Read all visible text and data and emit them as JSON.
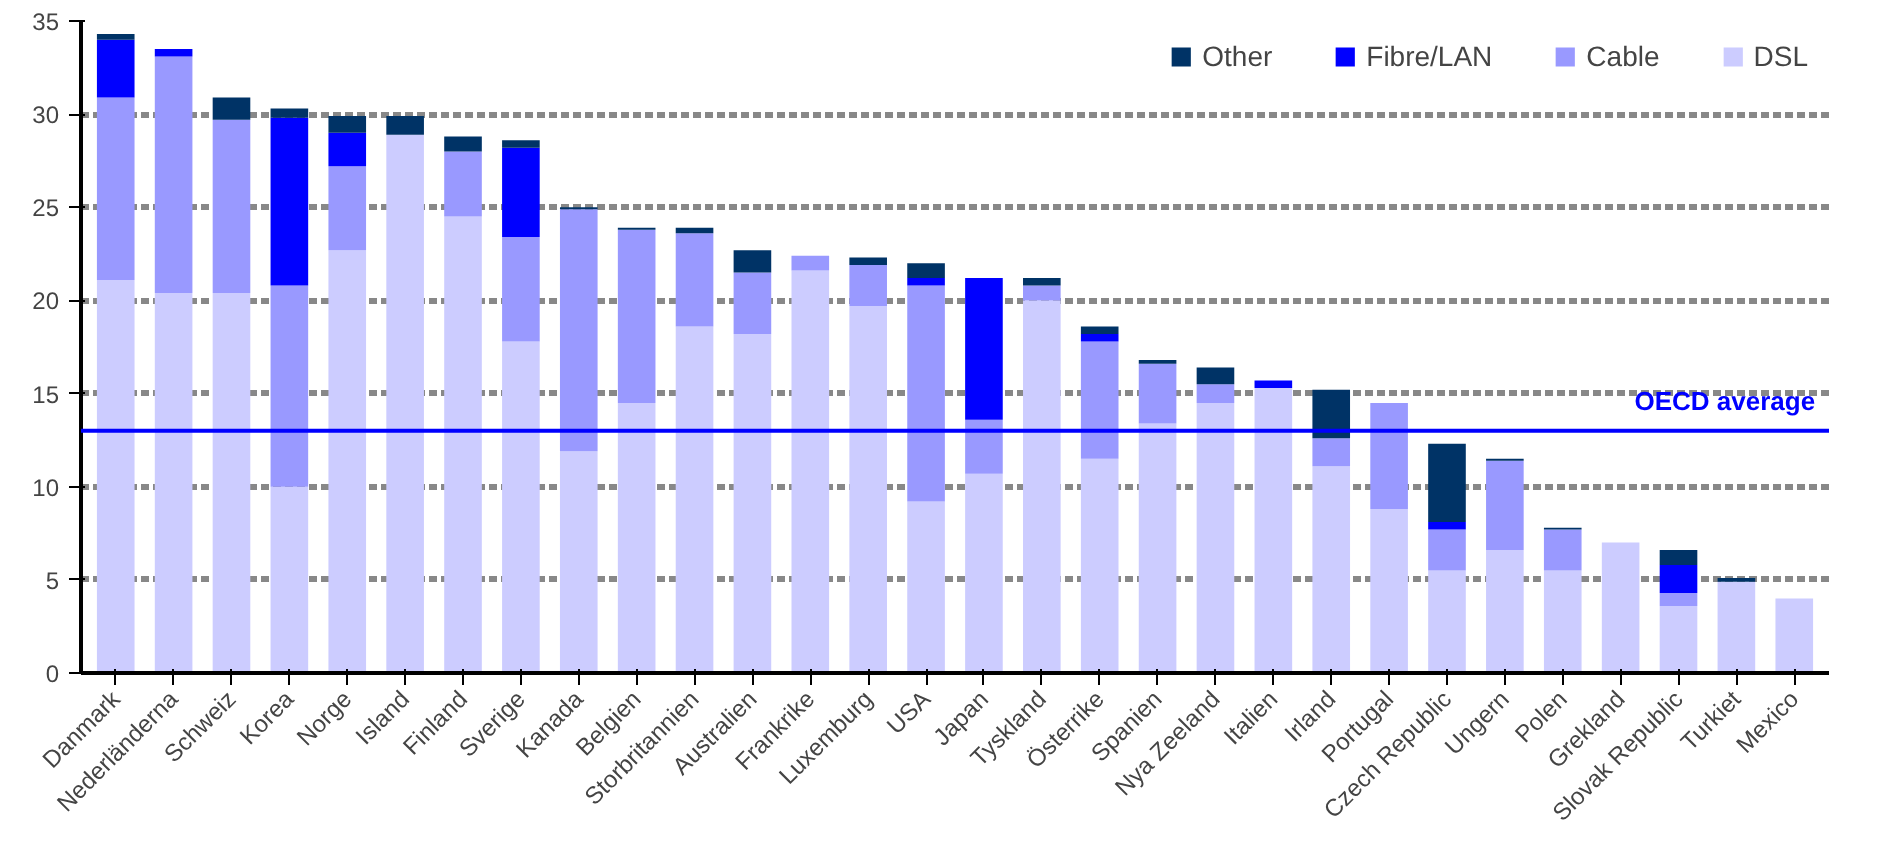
{
  "chart_data": {
    "type": "bar",
    "stacked": true,
    "categories": [
      "Danmark",
      "Nederländerna",
      "Schweiz",
      "Korea",
      "Norge",
      "Island",
      "Finland",
      "Sverige",
      "Kanada",
      "Belgien",
      "Storbritannien",
      "Australien",
      "Frankrike",
      "Luxemburg",
      "USA",
      "Japan",
      "Tyskland",
      "Österrike",
      "Spanien",
      "Nya Zeeland",
      "Italien",
      "Irland",
      "Portugal",
      "Czech Republic",
      "Ungern",
      "Polen",
      "Grekland",
      "Slovak Republic",
      "Turkiet",
      "Mexico"
    ],
    "series": [
      {
        "name": "DSL",
        "color": "#ccccff",
        "values": [
          21.1,
          20.4,
          20.4,
          10.0,
          22.7,
          28.9,
          24.5,
          17.8,
          11.9,
          14.5,
          18.6,
          18.2,
          21.6,
          19.7,
          9.2,
          10.7,
          20.0,
          11.5,
          13.4,
          14.5,
          15.3,
          11.1,
          8.8,
          5.5,
          6.6,
          5.5,
          7.0,
          3.6,
          4.9,
          4.0
        ]
      },
      {
        "name": "Cable",
        "color": "#9999ff",
        "values": [
          9.8,
          12.7,
          9.3,
          10.8,
          4.5,
          0,
          3.5,
          5.6,
          13.0,
          9.3,
          5.0,
          3.3,
          0.8,
          2.2,
          11.6,
          2.9,
          0.8,
          6.3,
          3.2,
          1.0,
          0,
          1.5,
          5.7,
          2.2,
          4.8,
          2.2,
          0,
          0.7,
          0,
          0
        ]
      },
      {
        "name": "Fibre/LAN",
        "color": "#0000ff",
        "values": [
          3.1,
          0.4,
          0,
          9.0,
          1.8,
          0,
          0,
          4.8,
          0,
          0,
          0,
          0,
          0,
          0,
          0.4,
          7.6,
          0,
          0.4,
          0,
          0,
          0.4,
          0,
          0,
          0.4,
          0,
          0,
          0,
          1.5,
          0,
          0
        ]
      },
      {
        "name": "Other",
        "color": "#003366",
        "values": [
          0.3,
          0,
          1.2,
          0.5,
          0.9,
          1.0,
          0.8,
          0.4,
          0.1,
          0.1,
          0.3,
          1.2,
          0,
          0.4,
          0.8,
          0,
          0.4,
          0.4,
          0.2,
          0.9,
          0,
          2.6,
          0,
          4.2,
          0.1,
          0.1,
          0,
          0.8,
          0.2,
          0
        ]
      }
    ],
    "ylim": [
      0,
      35
    ],
    "yticks": [
      0,
      5,
      10,
      15,
      20,
      25,
      30,
      35
    ],
    "grid": "y",
    "legend": "top right",
    "ref_lines": [
      {
        "axis": "y",
        "value": 13,
        "label": "OECD average",
        "color": "#0000ff"
      }
    ]
  }
}
